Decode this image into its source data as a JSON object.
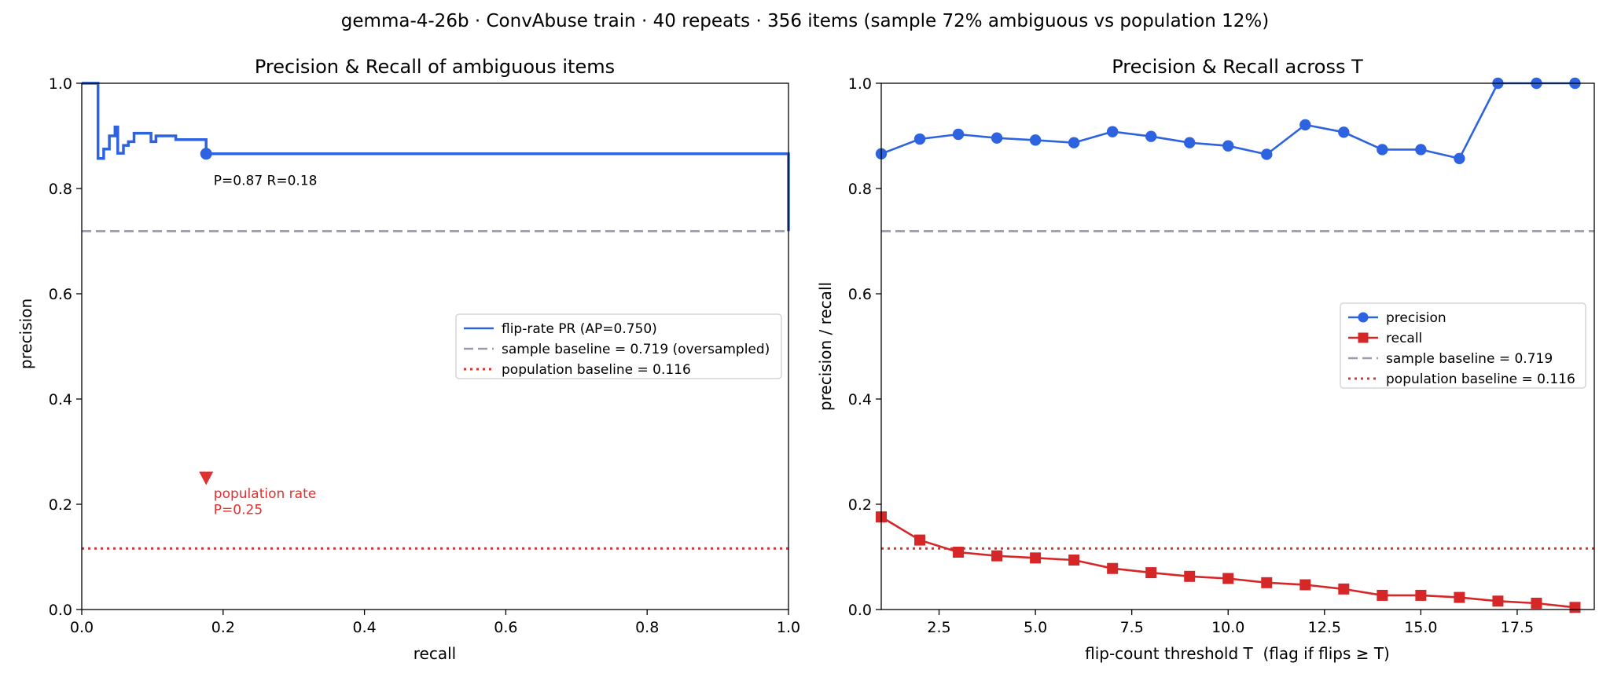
{
  "suptitle": "gemma-4-26b · ConvAbuse train · 40 repeats · 356 items (sample 72% ambiguous vs population 12%)",
  "chart_data": [
    {
      "type": "line",
      "title": "Precision & Recall of ambiguous items",
      "xlabel": "recall",
      "ylabel": "precision",
      "xlim": [
        0.0,
        1.0
      ],
      "ylim": [
        0.0,
        1.0
      ],
      "xticks": [
        "0.0",
        "0.2",
        "0.4",
        "0.6",
        "0.8",
        "1.0"
      ],
      "yticks": [
        "0.0",
        "0.2",
        "0.4",
        "0.6",
        "0.8",
        "1.0"
      ],
      "grid": false,
      "legend_position": "center-right",
      "series": [
        {
          "name": "flip-rate PR (AP=0.750)",
          "style": "step",
          "color": "#2d62e0",
          "points": [
            [
              0.0,
              1.0
            ],
            [
              0.023,
              1.0
            ],
            [
              0.023,
              0.857
            ],
            [
              0.031,
              0.857
            ],
            [
              0.031,
              0.875
            ],
            [
              0.039,
              0.875
            ],
            [
              0.039,
              0.9
            ],
            [
              0.047,
              0.9
            ],
            [
              0.047,
              0.917
            ],
            [
              0.051,
              0.917
            ],
            [
              0.051,
              0.867
            ],
            [
              0.059,
              0.867
            ],
            [
              0.059,
              0.882
            ],
            [
              0.066,
              0.882
            ],
            [
              0.066,
              0.889
            ],
            [
              0.074,
              0.889
            ],
            [
              0.074,
              0.905
            ],
            [
              0.098,
              0.905
            ],
            [
              0.098,
              0.889
            ],
            [
              0.105,
              0.889
            ],
            [
              0.105,
              0.9
            ],
            [
              0.133,
              0.9
            ],
            [
              0.133,
              0.893
            ],
            [
              0.176,
              0.893
            ],
            [
              0.176,
              0.866
            ],
            [
              1.0,
              0.866
            ],
            [
              1.0,
              0.719
            ]
          ]
        },
        {
          "name": "sample baseline = 0.719 (oversampled)",
          "style": "dashed",
          "color": "#9a9ab0",
          "y": 0.719
        },
        {
          "name": "population baseline = 0.116",
          "style": "dotted",
          "color": "#e03030",
          "y": 0.116
        }
      ],
      "markers": [
        {
          "x": 0.176,
          "y": 0.866,
          "shape": "circle",
          "color": "#2d62e0"
        },
        {
          "x": 0.176,
          "y": 0.25,
          "shape": "triangle-down",
          "color": "#e03030"
        }
      ],
      "annotations": [
        {
          "text": "P=0.87 R=0.18",
          "x": 0.2,
          "y": 0.81,
          "color": "#000000"
        },
        {
          "text": "population rate",
          "x": 0.2,
          "y": 0.215,
          "color": "#e03030"
        },
        {
          "text": "P=0.25",
          "x": 0.2,
          "y": 0.184,
          "color": "#e03030"
        }
      ]
    },
    {
      "type": "line",
      "title": "Precision & Recall across T",
      "xlabel": "flip-count threshold T  (flag if flips ≥ T)",
      "ylabel": "precision / recall",
      "xlim": [
        1,
        19.5
      ],
      "ylim": [
        0.0,
        1.0
      ],
      "xticks": [
        2.5,
        5.0,
        7.5,
        10.0,
        12.5,
        15.0,
        17.5
      ],
      "xtick_labels": [
        "2.5",
        "5.0",
        "7.5",
        "10.0",
        "12.5",
        "15.0",
        "17.5"
      ],
      "yticks": [
        "0.0",
        "0.2",
        "0.4",
        "0.6",
        "0.8",
        "1.0"
      ],
      "grid": false,
      "legend_position": "center-right",
      "x": [
        1,
        2,
        3,
        4,
        5,
        6,
        7,
        8,
        9,
        10,
        11,
        12,
        13,
        14,
        15,
        16,
        17,
        18,
        19
      ],
      "series": [
        {
          "name": "precision",
          "marker": "circle",
          "color": "#2d62e0",
          "values": [
            0.866,
            0.894,
            0.903,
            0.896,
            0.892,
            0.887,
            0.908,
            0.899,
            0.887,
            0.881,
            0.865,
            0.921,
            0.907,
            0.874,
            0.874,
            0.857,
            1.0,
            1.0,
            1.0
          ]
        },
        {
          "name": "recall",
          "marker": "square",
          "color": "#d62728",
          "values": [
            0.176,
            0.132,
            0.109,
            0.102,
            0.098,
            0.094,
            0.078,
            0.07,
            0.063,
            0.059,
            0.051,
            0.047,
            0.039,
            0.027,
            0.027,
            0.023,
            0.016,
            0.012,
            0.004
          ]
        },
        {
          "name": "sample baseline = 0.719",
          "style": "dashed",
          "color": "#9a9ab0",
          "y": 0.719
        },
        {
          "name": "population baseline = 0.116",
          "style": "dotted",
          "color": "#e03030",
          "y": 0.116
        }
      ]
    }
  ]
}
